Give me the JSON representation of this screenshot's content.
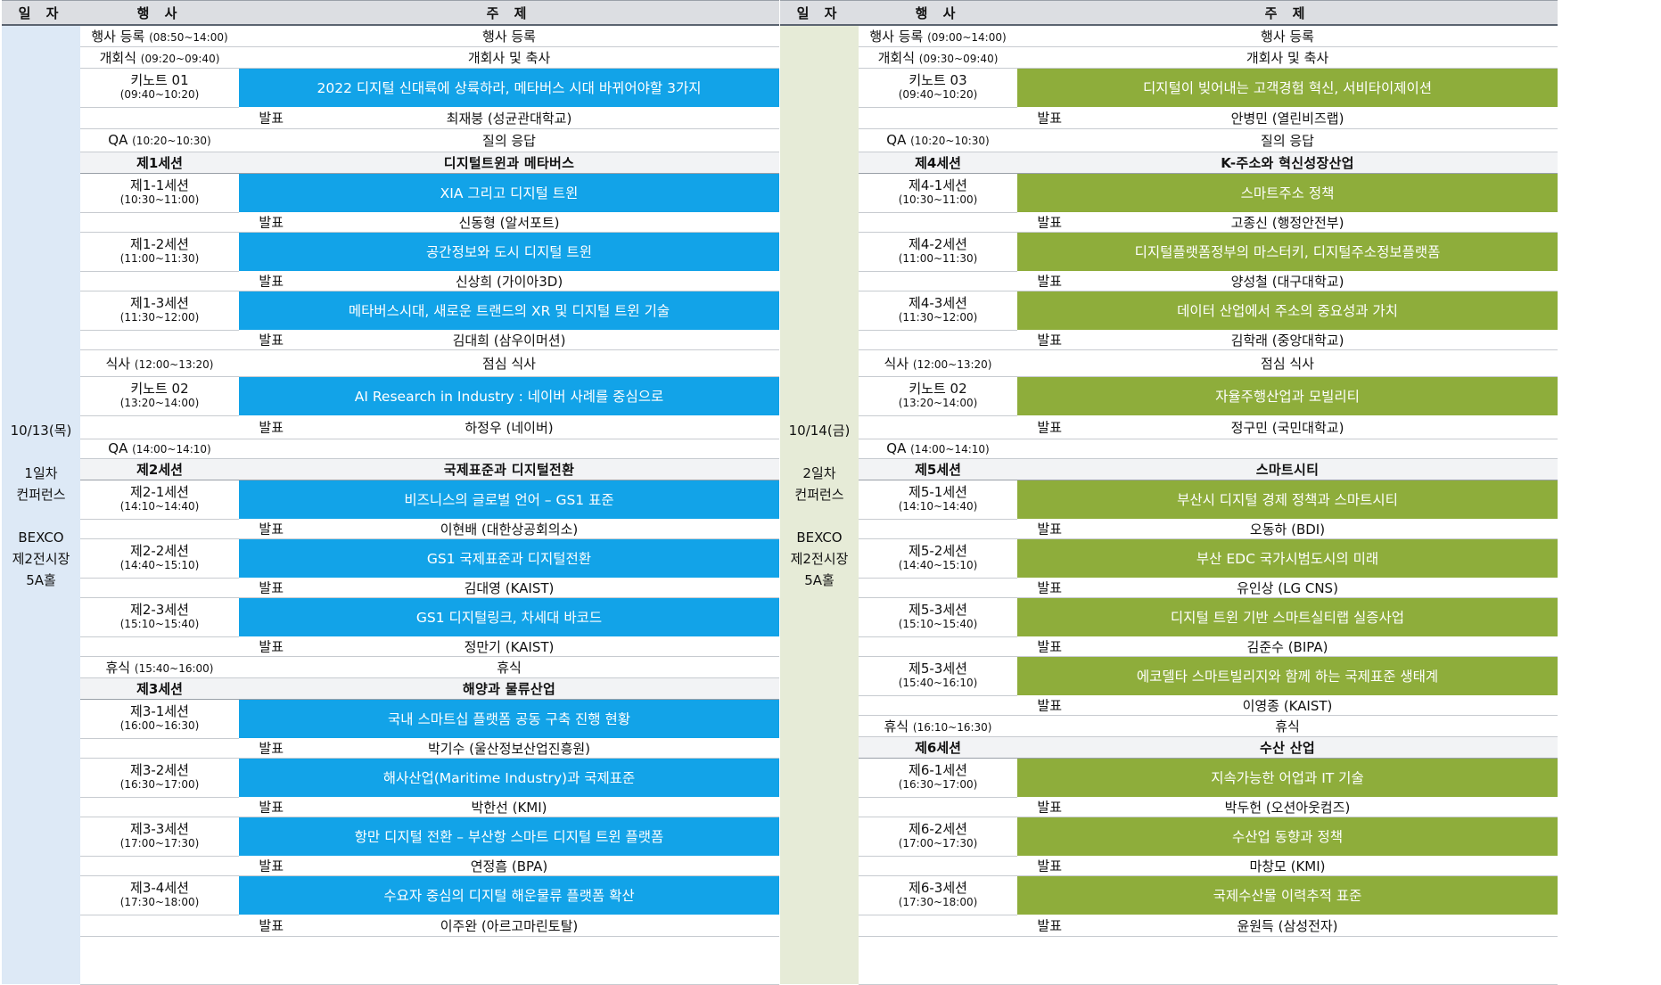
{
  "headers": {
    "date": "일 자",
    "event": "행 사",
    "topic": "주 제"
  },
  "days": [
    {
      "date": "10/13(목)",
      "label1": "1일차",
      "label2": "컨퍼런스",
      "venue1": "BEXCO",
      "venue2": "제2전시장",
      "venue3": "5A홀",
      "rows": [
        {
          "type": "plain",
          "event": "행사 등록",
          "time": "(08:50~14:00)",
          "topic": "행사 등록",
          "h": 24
        },
        {
          "type": "plain",
          "event": "개회식",
          "time": "(09:20~09:40)",
          "topic": "개회사 및 축사",
          "h": 24
        },
        {
          "type": "talk",
          "event": "키노트 01",
          "time": "(09:40~10:20)",
          "topic": "2022 디지털 신대륙에 상륙하라, 메타버스 시대 바뀌어야할 3가지",
          "presenter": "최재붕 (성균관대학교)",
          "h": 44,
          "ph": 24
        },
        {
          "type": "plain",
          "event": "QA",
          "time": "(10:20~10:30)",
          "topic": "질의 응답",
          "h": 26
        },
        {
          "type": "section",
          "event": "제1세션",
          "topic": "디지털트윈과 메타버스",
          "h": 24
        },
        {
          "type": "talk",
          "event": "제1-1세션",
          "time": "(10:30~11:00)",
          "topic": "XIA 그리고 디지털 트윈",
          "presenter": "신동형 (알서포트)",
          "h": 44,
          "ph": 22
        },
        {
          "type": "talk",
          "event": "제1-2세션",
          "time": "(11:00~11:30)",
          "topic": "공간정보와 도시 디지털 트윈",
          "presenter": "신상희 (가이아3D)",
          "h": 44,
          "ph": 22
        },
        {
          "type": "talk",
          "event": "제1-3세션",
          "time": "(11:30~12:00)",
          "topic": "메타버스시대, 새로운 트랜드의 XR 및 디지털 트윈 기술",
          "presenter": "김대희 (삼우이머션)",
          "h": 44,
          "ph": 22
        },
        {
          "type": "plain",
          "event": "식사",
          "time": "(12:00~13:20)",
          "topic": "점심 식사",
          "h": 30
        },
        {
          "type": "talk",
          "event": "키노트 02",
          "time": "(13:20~14:00)",
          "topic": "AI Research in Industry : 네이버 사례를 중심으로",
          "presenter": "하정우 (네이버)",
          "h": 44,
          "ph": 26
        },
        {
          "type": "plain",
          "event": "QA",
          "time": "(14:00~14:10)",
          "topic": "",
          "h": 22
        },
        {
          "type": "section",
          "event": "제2세션",
          "topic": "국제표준과 디지털전환",
          "h": 24
        },
        {
          "type": "talk",
          "event": "제2-1세션",
          "time": "(14:10~14:40)",
          "topic": "비즈니스의 글로벌 언어 – GS1 표준",
          "presenter": "이현배 (대한상공회의소)",
          "h": 44,
          "ph": 22
        },
        {
          "type": "talk",
          "event": "제2-2세션",
          "time": "(14:40~15:10)",
          "topic": "GS1 국제표준과 디지털전환",
          "presenter": "김대영 (KAIST)",
          "h": 44,
          "ph": 22
        },
        {
          "type": "talk",
          "event": "제2-3세션",
          "time": "(15:10~15:40)",
          "topic": "GS1 디지털링크, 차세대 바코드",
          "presenter": "정만기 (KAIST)",
          "h": 44,
          "ph": 22
        },
        {
          "type": "plain",
          "event": "휴식",
          "time": "(15:40~16:00)",
          "topic": "휴식",
          "h": 24
        },
        {
          "type": "section",
          "event": "제3세션",
          "topic": "해양과 물류산업",
          "h": 24
        },
        {
          "type": "talk",
          "event": "제3-1세션",
          "time": "(16:00~16:30)",
          "topic": "국내 스마트십 플랫폼 공동 구축 진행 현황",
          "presenter": "박기수 (울산정보산업진흥원)",
          "h": 44,
          "ph": 22
        },
        {
          "type": "talk",
          "event": "제3-2세션",
          "time": "(16:30~17:00)",
          "topic": "해사산업(Maritime Industry)과 국제표준",
          "presenter": "박한선 (KMI)",
          "h": 44,
          "ph": 22
        },
        {
          "type": "talk",
          "event": "제3-3세션",
          "time": "(17:00~17:30)",
          "topic": "항만 디지털 전환 – 부산항 스마트 디지털 트윈 플랫폼",
          "presenter": "연정흠 (BPA)",
          "h": 44,
          "ph": 22
        },
        {
          "type": "talk",
          "event": "제3-4세션",
          "time": "(17:30~18:00)",
          "topic": "수요자 중심의 디지털 해운물류 플랫폼 확산",
          "presenter": "이주완 (아르고마린토탈)",
          "h": 44,
          "ph": 24
        }
      ]
    },
    {
      "date": "10/14(금)",
      "label1": "2일차",
      "label2": "컨퍼런스",
      "venue1": "BEXCO",
      "venue2": "제2전시장",
      "venue3": "5A홀",
      "rows": [
        {
          "type": "plain",
          "event": "행사 등록",
          "time": "(09:00~14:00)",
          "topic": "행사 등록",
          "h": 24
        },
        {
          "type": "plain",
          "event": "개회식",
          "time": "(09:30~09:40)",
          "topic": "개회사 및 축사",
          "h": 24
        },
        {
          "type": "talk",
          "event": "키노트 03",
          "time": "(09:40~10:20)",
          "topic": "디지털이 빚어내는 고객경험 혁신, 서비타이제이션",
          "presenter": "안병민 (열린비즈랩)",
          "h": 44,
          "ph": 24
        },
        {
          "type": "plain",
          "event": "QA",
          "time": "(10:20~10:30)",
          "topic": "질의 응답",
          "h": 26
        },
        {
          "type": "section",
          "event": "제4세션",
          "topic": "K-주소와 혁신성장산업",
          "h": 24
        },
        {
          "type": "talk",
          "event": "제4-1세션",
          "time": "(10:30~11:00)",
          "topic": "스마트주소 정책",
          "presenter": "고종신 (행정안전부)",
          "h": 44,
          "ph": 22
        },
        {
          "type": "talk",
          "event": "제4-2세션",
          "time": "(11:00~11:30)",
          "topic": "디지털플랫폼정부의 마스터키, 디지털주소정보플랫폼",
          "presenter": "양성철 (대구대학교)",
          "h": 44,
          "ph": 22
        },
        {
          "type": "talk",
          "event": "제4-3세션",
          "time": "(11:30~12:00)",
          "topic": "데이터 산업에서 주소의 중요성과 가치",
          "presenter": "김학래 (중앙대학교)",
          "h": 44,
          "ph": 22
        },
        {
          "type": "plain",
          "event": "식사",
          "time": "(12:00~13:20)",
          "topic": "점심 식사",
          "h": 30
        },
        {
          "type": "talk",
          "event": "키노트 02",
          "time": "(13:20~14:00)",
          "topic": "자율주행산업과 모빌리티",
          "presenter": "정구민 (국민대학교)",
          "h": 44,
          "ph": 26
        },
        {
          "type": "plain",
          "event": "QA",
          "time": "(14:00~14:10)",
          "topic": "",
          "h": 22
        },
        {
          "type": "section",
          "event": "제5세션",
          "topic": "스마트시티",
          "h": 24
        },
        {
          "type": "talk",
          "event": "제5-1세션",
          "time": "(14:10~14:40)",
          "topic": "부산시 디지털 경제 정책과 스마트시티",
          "presenter": "오동하 (BDI)",
          "h": 44,
          "ph": 22
        },
        {
          "type": "talk",
          "event": "제5-2세션",
          "time": "(14:40~15:10)",
          "topic": "부산 EDC 국가시범도시의 미래",
          "presenter": "유인상 (LG CNS)",
          "h": 44,
          "ph": 22
        },
        {
          "type": "talk",
          "event": "제5-3세션",
          "time": "(15:10~15:40)",
          "topic": "디지털 트윈 기반 스마트실티랩 실증사업",
          "presenter": "김준수 (BIPA)",
          "h": 44,
          "ph": 22
        },
        {
          "type": "talk",
          "event": "제5-3세션",
          "time": "(15:40~16:10)",
          "topic": "에코델타 스마트빌리지와 함께 하는 국제표준 생태계",
          "presenter": "이영종 (KAIST)",
          "h": 44,
          "ph": 22
        },
        {
          "type": "plain",
          "event": "휴식",
          "time": "(16:10~16:30)",
          "topic": "휴식",
          "h": 24
        },
        {
          "type": "section",
          "event": "제6세션",
          "topic": "수산 산업",
          "h": 24
        },
        {
          "type": "talk",
          "event": "제6-1세션",
          "time": "(16:30~17:00)",
          "topic": "지속가능한 어업과 IT 기술",
          "presenter": "박두헌 (오션아웃컴즈)",
          "h": 44,
          "ph": 22
        },
        {
          "type": "talk",
          "event": "제6-2세션",
          "time": "(17:00~17:30)",
          "topic": "수산업 동향과 정책",
          "presenter": "마창모 (KMI)",
          "h": 44,
          "ph": 22
        },
        {
          "type": "talk",
          "event": "제6-3세션",
          "time": "(17:30~18:00)",
          "topic": "국제수산물 이력추적 표준",
          "presenter": "윤원득 (삼성전자)",
          "h": 44,
          "ph": 24
        }
      ]
    }
  ],
  "presenter_label": "발표"
}
